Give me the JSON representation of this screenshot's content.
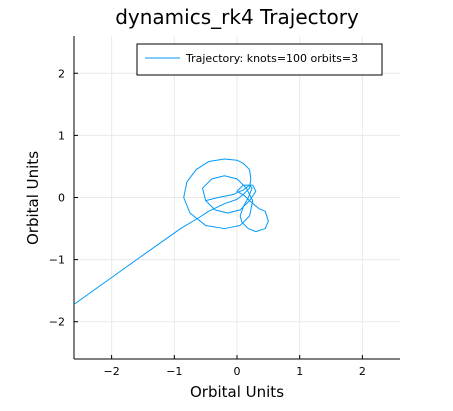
{
  "chart_data": {
    "type": "line",
    "title": "dynamics_rk4 Trajectory",
    "xlabel": "Orbital Units",
    "ylabel": "Orbital Units",
    "xlim": [
      -2.6,
      2.6
    ],
    "ylim": [
      -2.6,
      2.6
    ],
    "xticks": [
      -2,
      -1,
      0,
      1,
      2
    ],
    "yticks": [
      -2,
      -1,
      0,
      1,
      2
    ],
    "xtick_labels": [
      "−2",
      "−1",
      "0",
      "1",
      "2"
    ],
    "ytick_labels": [
      "−2",
      "−1",
      "0",
      "1",
      "2"
    ],
    "grid": true,
    "legend_position": "top-right",
    "colors": {
      "series": "#009af9"
    },
    "series": [
      {
        "name": "Trajectory: knots=100 orbits=3",
        "x": [
          -2.6,
          -1.6,
          -0.9,
          -0.6,
          -0.45,
          -0.2,
          0.0,
          0.1,
          0.2,
          0.22,
          0.2,
          0.1,
          0.0,
          -0.2,
          -0.45,
          -0.65,
          -0.8,
          -0.85,
          -0.75,
          -0.5,
          -0.2,
          0.05,
          0.2,
          0.25,
          0.15,
          0.0,
          -0.2,
          -0.4,
          -0.55,
          -0.5,
          -0.35,
          -0.15,
          0.05,
          0.2,
          0.3,
          0.25,
          0.1,
          0.0,
          0.12,
          0.2,
          0.28,
          0.35,
          0.45,
          0.5,
          0.45,
          0.3,
          0.18,
          0.08,
          0.05,
          0.1,
          0.18,
          0.24,
          0.2,
          0.1,
          0.0,
          -0.05,
          -0.3,
          -0.5
        ],
        "y": [
          -1.72,
          -1.0,
          -0.5,
          -0.32,
          -0.22,
          -0.1,
          -0.03,
          0.05,
          0.15,
          0.3,
          0.45,
          0.55,
          0.6,
          0.62,
          0.58,
          0.45,
          0.25,
          0.0,
          -0.25,
          -0.45,
          -0.5,
          -0.45,
          -0.3,
          -0.05,
          0.15,
          0.3,
          0.35,
          0.3,
          0.15,
          -0.05,
          -0.2,
          -0.25,
          -0.2,
          -0.05,
          0.1,
          0.2,
          0.2,
          0.1,
          0.03,
          -0.05,
          -0.12,
          -0.18,
          -0.22,
          -0.38,
          -0.5,
          -0.55,
          -0.5,
          -0.4,
          -0.3,
          -0.15,
          0.0,
          0.15,
          0.2,
          0.12,
          0.08,
          0.05,
          0.0,
          -0.05
        ]
      }
    ]
  }
}
